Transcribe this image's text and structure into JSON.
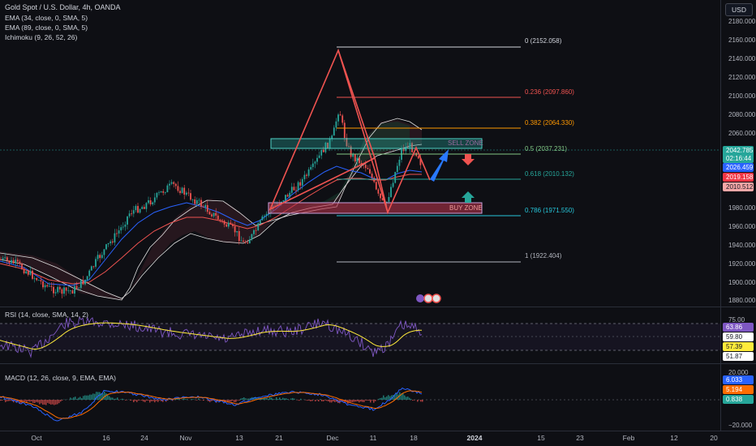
{
  "chart": {
    "title": "Gold Spot / U.S. Dollar, 4h, OANDA",
    "indicators": [
      "EMA (34, close, 0, SMA, 5)",
      "EMA (89, close, 0, SMA, 5)",
      "Ichimoku (9, 26, 52, 26)"
    ],
    "currency_button": "USD",
    "colors": {
      "bg": "#0e0f14",
      "up": "#26a69a",
      "down": "#ef5350",
      "fib_red": "#ef5350",
      "fib_orange": "#ff9800",
      "fib_green": "#4caf50",
      "fib_teal": "#26c6da",
      "sell_zone": "#26a69a",
      "buy_zone": "#b2324a"
    }
  },
  "price_axis": {
    "labels": [
      "2180.000",
      "2160.000",
      "2140.000",
      "2120.000",
      "2100.000",
      "2080.000",
      "2060.000",
      "1980.000",
      "1960.000",
      "1940.000",
      "1920.000",
      "1900.000",
      "1880.000"
    ],
    "badges": [
      {
        "text": "2042.785",
        "sub": "02:16:44",
        "bg": "#26a69a",
        "color": "#ffffff"
      },
      {
        "text": "2026.459",
        "bg": "#2962ff",
        "color": "#ffffff"
      },
      {
        "text": "2019.158",
        "bg": "#f23645",
        "color": "#ffffff"
      },
      {
        "text": "2010.512",
        "bg": "#f7a7a7",
        "color": "#131722"
      }
    ]
  },
  "fibonacci": [
    {
      "ratio": "0",
      "label": "0 (2152.058)",
      "color": "#d1d4dc"
    },
    {
      "ratio": "0.236",
      "label": "0.236 (2097.860)",
      "color": "#ef5350"
    },
    {
      "ratio": "0.382",
      "label": "0.382 (2064.330)",
      "color": "#ff9800"
    },
    {
      "ratio": "0.5",
      "label": "0.5 (2037.231)",
      "color": "#81c784"
    },
    {
      "ratio": "0.618",
      "label": "0.618 (2010.132)",
      "color": "#26a69a"
    },
    {
      "ratio": "0.786",
      "label": "0.786 (1971.550)",
      "color": "#26c6da"
    },
    {
      "ratio": "1",
      "label": "1 (1922.404)",
      "color": "#b2b5be"
    }
  ],
  "zones": {
    "sell": "SELL ZONE",
    "buy": "BUY ZONE"
  },
  "rsi": {
    "label": "RSI (14, close, SMA, 14, 2)",
    "axis": [
      "75.00"
    ],
    "badges": [
      {
        "text": "63.86",
        "bg": "#7e57c2",
        "color": "#ffffff"
      },
      {
        "text": "59.80",
        "bg": "#ffffff",
        "color": "#131722"
      },
      {
        "text": "57.39",
        "bg": "#ffeb3b",
        "color": "#131722"
      },
      {
        "text": "51.87",
        "bg": "#ffffff",
        "color": "#131722"
      }
    ]
  },
  "macd": {
    "label": "MACD (12, 26, close, 9, EMA, EMA)",
    "axis": [
      "20.000",
      "−20.000"
    ],
    "badges": [
      {
        "text": "6.033",
        "bg": "#2962ff",
        "color": "#ffffff"
      },
      {
        "text": "5.194",
        "bg": "#ff6d00",
        "color": "#ffffff"
      },
      {
        "text": "0.838",
        "bg": "#26a69a",
        "color": "#ffffff"
      }
    ]
  },
  "time_axis": [
    {
      "label": "Oct",
      "bold": false
    },
    {
      "label": "16",
      "bold": false
    },
    {
      "label": "24",
      "bold": false
    },
    {
      "label": "Nov",
      "bold": false
    },
    {
      "label": "13",
      "bold": false
    },
    {
      "label": "21",
      "bold": false
    },
    {
      "label": "Dec",
      "bold": false
    },
    {
      "label": "11",
      "bold": false
    },
    {
      "label": "18",
      "bold": false
    },
    {
      "label": "2024",
      "bold": true
    },
    {
      "label": "15",
      "bold": false
    },
    {
      "label": "23",
      "bold": false
    },
    {
      "label": "Feb",
      "bold": false
    },
    {
      "label": "12",
      "bold": false
    },
    {
      "label": "20",
      "bold": false
    }
  ]
}
